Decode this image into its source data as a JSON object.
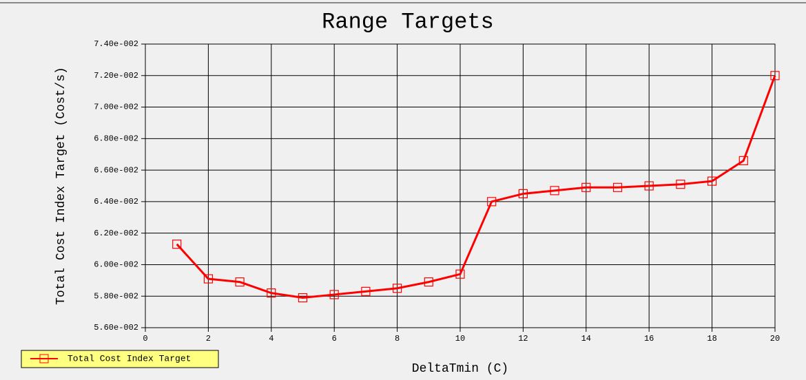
{
  "chart_data": {
    "type": "line",
    "title": "Range Targets",
    "x_label": "DeltaTmin (C)",
    "y_label": "Total Cost Index Target (Cost/s)",
    "x": [
      1,
      2,
      3,
      4,
      5,
      6,
      7,
      8,
      9,
      10,
      11,
      12,
      13,
      14,
      15,
      16,
      17,
      18,
      19,
      20
    ],
    "series": [
      {
        "name": "Total Cost Index Target",
        "color": "#ff0000",
        "values": [
          0.0613,
          0.0591,
          0.0589,
          0.0582,
          0.0579,
          0.0581,
          0.0583,
          0.0585,
          0.0589,
          0.0594,
          0.064,
          0.0645,
          0.0647,
          0.0649,
          0.0649,
          0.065,
          0.0651,
          0.0653,
          0.0666,
          0.072
        ]
      }
    ],
    "xlim": [
      0,
      20
    ],
    "xticks": [
      0,
      2,
      4,
      6,
      8,
      10,
      12,
      14,
      16,
      18,
      20
    ],
    "ylim": [
      0.056,
      0.074
    ],
    "yticks": [
      {
        "value": 0.056,
        "label": "5.60e-002"
      },
      {
        "value": 0.058,
        "label": "5.80e-002"
      },
      {
        "value": 0.06,
        "label": "6.00e-002"
      },
      {
        "value": 0.062,
        "label": "6.20e-002"
      },
      {
        "value": 0.064,
        "label": "6.40e-002"
      },
      {
        "value": 0.066,
        "label": "6.60e-002"
      },
      {
        "value": 0.068,
        "label": "6.80e-002"
      },
      {
        "value": 0.07,
        "label": "7.00e-002"
      },
      {
        "value": 0.072,
        "label": "7.20e-002"
      },
      {
        "value": 0.074,
        "label": "7.40e-002"
      }
    ],
    "grid": true,
    "legend": "bottom-left",
    "legend_color": "#ffff80"
  }
}
